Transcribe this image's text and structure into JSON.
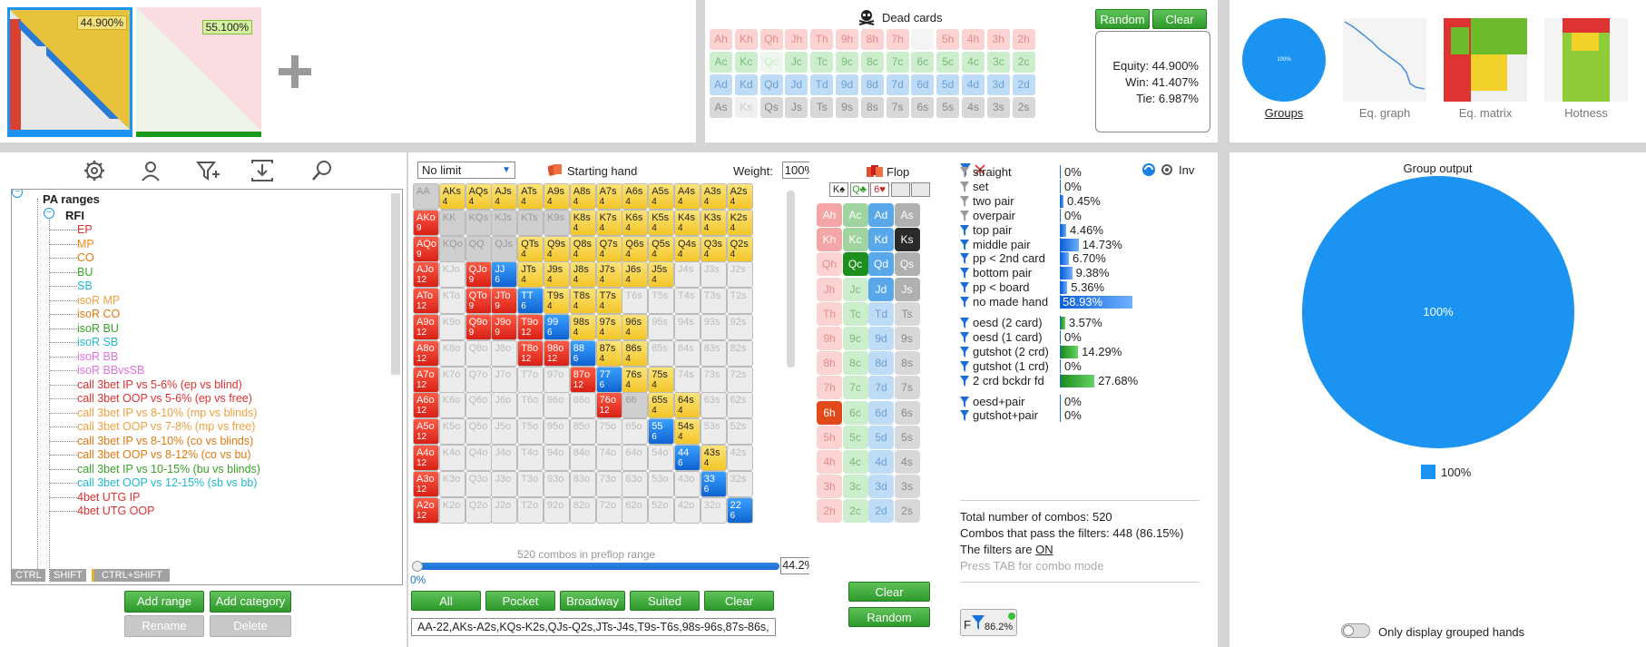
{
  "top_left": {
    "thumb1_pct": "44.900%",
    "thumb2_pct": "55.100%"
  },
  "dead_cards": {
    "title": "Dead cards",
    "random_label": "Random",
    "clear_label": "Clear",
    "rows": [
      [
        "Ah",
        "Kh",
        "Qh",
        "Jh",
        "Th",
        "9h",
        "8h",
        "7h",
        "",
        "5h",
        "4h",
        "3h",
        "2h"
      ],
      [
        "Ac",
        "Kc",
        "Qc",
        "Jc",
        "Tc",
        "9c",
        "8c",
        "7c",
        "6c",
        "5c",
        "4c",
        "3c",
        "2c"
      ],
      [
        "Ad",
        "Kd",
        "Qd",
        "Jd",
        "Td",
        "9d",
        "8d",
        "7d",
        "6d",
        "5d",
        "4d",
        "3d",
        "2d"
      ],
      [
        "As",
        "Ks",
        "Qs",
        "Js",
        "Ts",
        "9s",
        "8s",
        "7s",
        "6s",
        "5s",
        "4s",
        "3s",
        "2s"
      ]
    ],
    "equity": "Equity: 44.900%",
    "win": "Win: 41.407%",
    "tie": "Tie: 6.987%"
  },
  "views": {
    "items": [
      "Groups",
      "Eq. graph",
      "Eq. matrix",
      "Hotness"
    ],
    "groups_pct": "100%"
  },
  "toolbar_icons": [
    "gear-icon",
    "user-icon",
    "filter-add-icon",
    "import-icon",
    "search-icon"
  ],
  "tree": {
    "root": "PA ranges",
    "folder": "RFI",
    "items": [
      {
        "label": "EP",
        "color": "#e03030"
      },
      {
        "label": "MP",
        "color": "#f08a20"
      },
      {
        "label": "CO",
        "color": "#e07a10"
      },
      {
        "label": "BU",
        "color": "#3aa02a"
      },
      {
        "label": "SB",
        "color": "#20b8d0"
      },
      {
        "label": "isoR MP",
        "color": "#f0a040"
      },
      {
        "label": "isoR CO",
        "color": "#e07a10"
      },
      {
        "label": "isoR BU",
        "color": "#3aa02a"
      },
      {
        "label": "isoR SB",
        "color": "#20b8d0"
      },
      {
        "label": "isoR BB",
        "color": "#e070e0"
      },
      {
        "label": "isoR BBvsSB",
        "color": "#e070e0"
      },
      {
        "label": "call 3bet IP vs 5-6% (ep vs blind)",
        "color": "#e03030"
      },
      {
        "label": "call 3bet OOP vs 5-6% (ep vs free)",
        "color": "#e03030"
      },
      {
        "label": "call 3bet IP vs 8-10% (mp vs blinds)",
        "color": "#f0a040"
      },
      {
        "label": "call 3bet OOP vs 7-8% (mp vs free)",
        "color": "#f0a040"
      },
      {
        "label": "call 3bet IP vs 8-10% (co vs blinds)",
        "color": "#e07a10"
      },
      {
        "label": "call 3bet OOP vs 8-12% (co vs bu)",
        "color": "#e07a10"
      },
      {
        "label": "call 3bet IP vs 10-15% (bu vs blinds)",
        "color": "#3aa02a"
      },
      {
        "label": "call 3bet OOP vs 12-15% (sb vs bb)",
        "color": "#20b8d0"
      },
      {
        "label": "4bet UTG IP",
        "color": "#e03030"
      },
      {
        "label": "4bet UTG OOP",
        "color": "#e03030"
      }
    ],
    "keys": [
      "CTRL",
      "SHIFT",
      "CTRL+SHIFT"
    ],
    "add_range": "Add range",
    "add_category": "Add category",
    "rename": "Rename",
    "delete": "Delete"
  },
  "hand_matrix": {
    "limit": "No limit",
    "starting_hand": "Starting hand",
    "weight_label": "Weight:",
    "weight": "100%",
    "combos_text": "520 combos in preflop range",
    "slider_min": "0%",
    "slider_val": "44.2%",
    "buttons": [
      "All",
      "Pocket",
      "Broadway",
      "Suited",
      "Clear"
    ],
    "range_text": "AA-22,AKs-A2s,KQs-K2s,QJs-Q2s,JTs-J4s,T9s-T6s,98s-96s,87s-86s,"
  },
  "flop": {
    "title": "Flop",
    "board": [
      "K♠",
      "Q♣",
      "6♥",
      "",
      ""
    ],
    "clear_label": "Clear",
    "random_label": "Random"
  },
  "filters": {
    "inv": "Inv",
    "rows": [
      {
        "label": "straight",
        "pct": "0%",
        "w": 0,
        "type": "b"
      },
      {
        "label": "set",
        "pct": "0%",
        "w": 0,
        "type": "b"
      },
      {
        "label": "two pair",
        "pct": "0.45%",
        "w": 0.005,
        "type": "b"
      },
      {
        "label": "overpair",
        "pct": "0%",
        "w": 0,
        "type": "b"
      },
      {
        "label": "top pair",
        "pct": "4.46%",
        "w": 0.045,
        "type": "b"
      },
      {
        "label": "middle pair",
        "pct": "14.73%",
        "w": 0.147,
        "type": "b"
      },
      {
        "label": "pp < 2nd card",
        "pct": "6.70%",
        "w": 0.067,
        "type": "b"
      },
      {
        "label": "bottom pair",
        "pct": "9.38%",
        "w": 0.094,
        "type": "b"
      },
      {
        "label": "pp < board",
        "pct": "5.36%",
        "w": 0.054,
        "type": "b"
      },
      {
        "label": "no made hand",
        "pct": "58.93%",
        "w": 0.589,
        "type": "b"
      },
      {
        "label": "oesd (2 card)",
        "pct": "3.57%",
        "w": 0.036,
        "type": "g"
      },
      {
        "label": "oesd (1 card)",
        "pct": "0%",
        "w": 0,
        "type": "g"
      },
      {
        "label": "gutshot (2 crd)",
        "pct": "14.29%",
        "w": 0.143,
        "type": "g"
      },
      {
        "label": "gutshot (1 crd)",
        "pct": "0%",
        "w": 0,
        "type": "g"
      },
      {
        "label": "2 crd bckdr fd",
        "pct": "27.68%",
        "w": 0.277,
        "type": "g"
      },
      {
        "label": "oesd+pair",
        "pct": "0%",
        "w": 0,
        "type": "b"
      },
      {
        "label": "gutshot+pair",
        "pct": "0%",
        "w": 0,
        "type": "b"
      }
    ],
    "total": "Total number of combos: 520",
    "pass": "Combos that pass the filters: 448 (86.15%)",
    "on_prefix": "The filters are ",
    "on_value": "ON",
    "tab_hint": "Press TAB for combo mode",
    "f_pct": "86.2%"
  },
  "group_output": {
    "title": "Group output",
    "pie_label": "100%",
    "legend": "100%",
    "toggle_label": "Only display grouped hands",
    "color": "#1a94f0"
  }
}
